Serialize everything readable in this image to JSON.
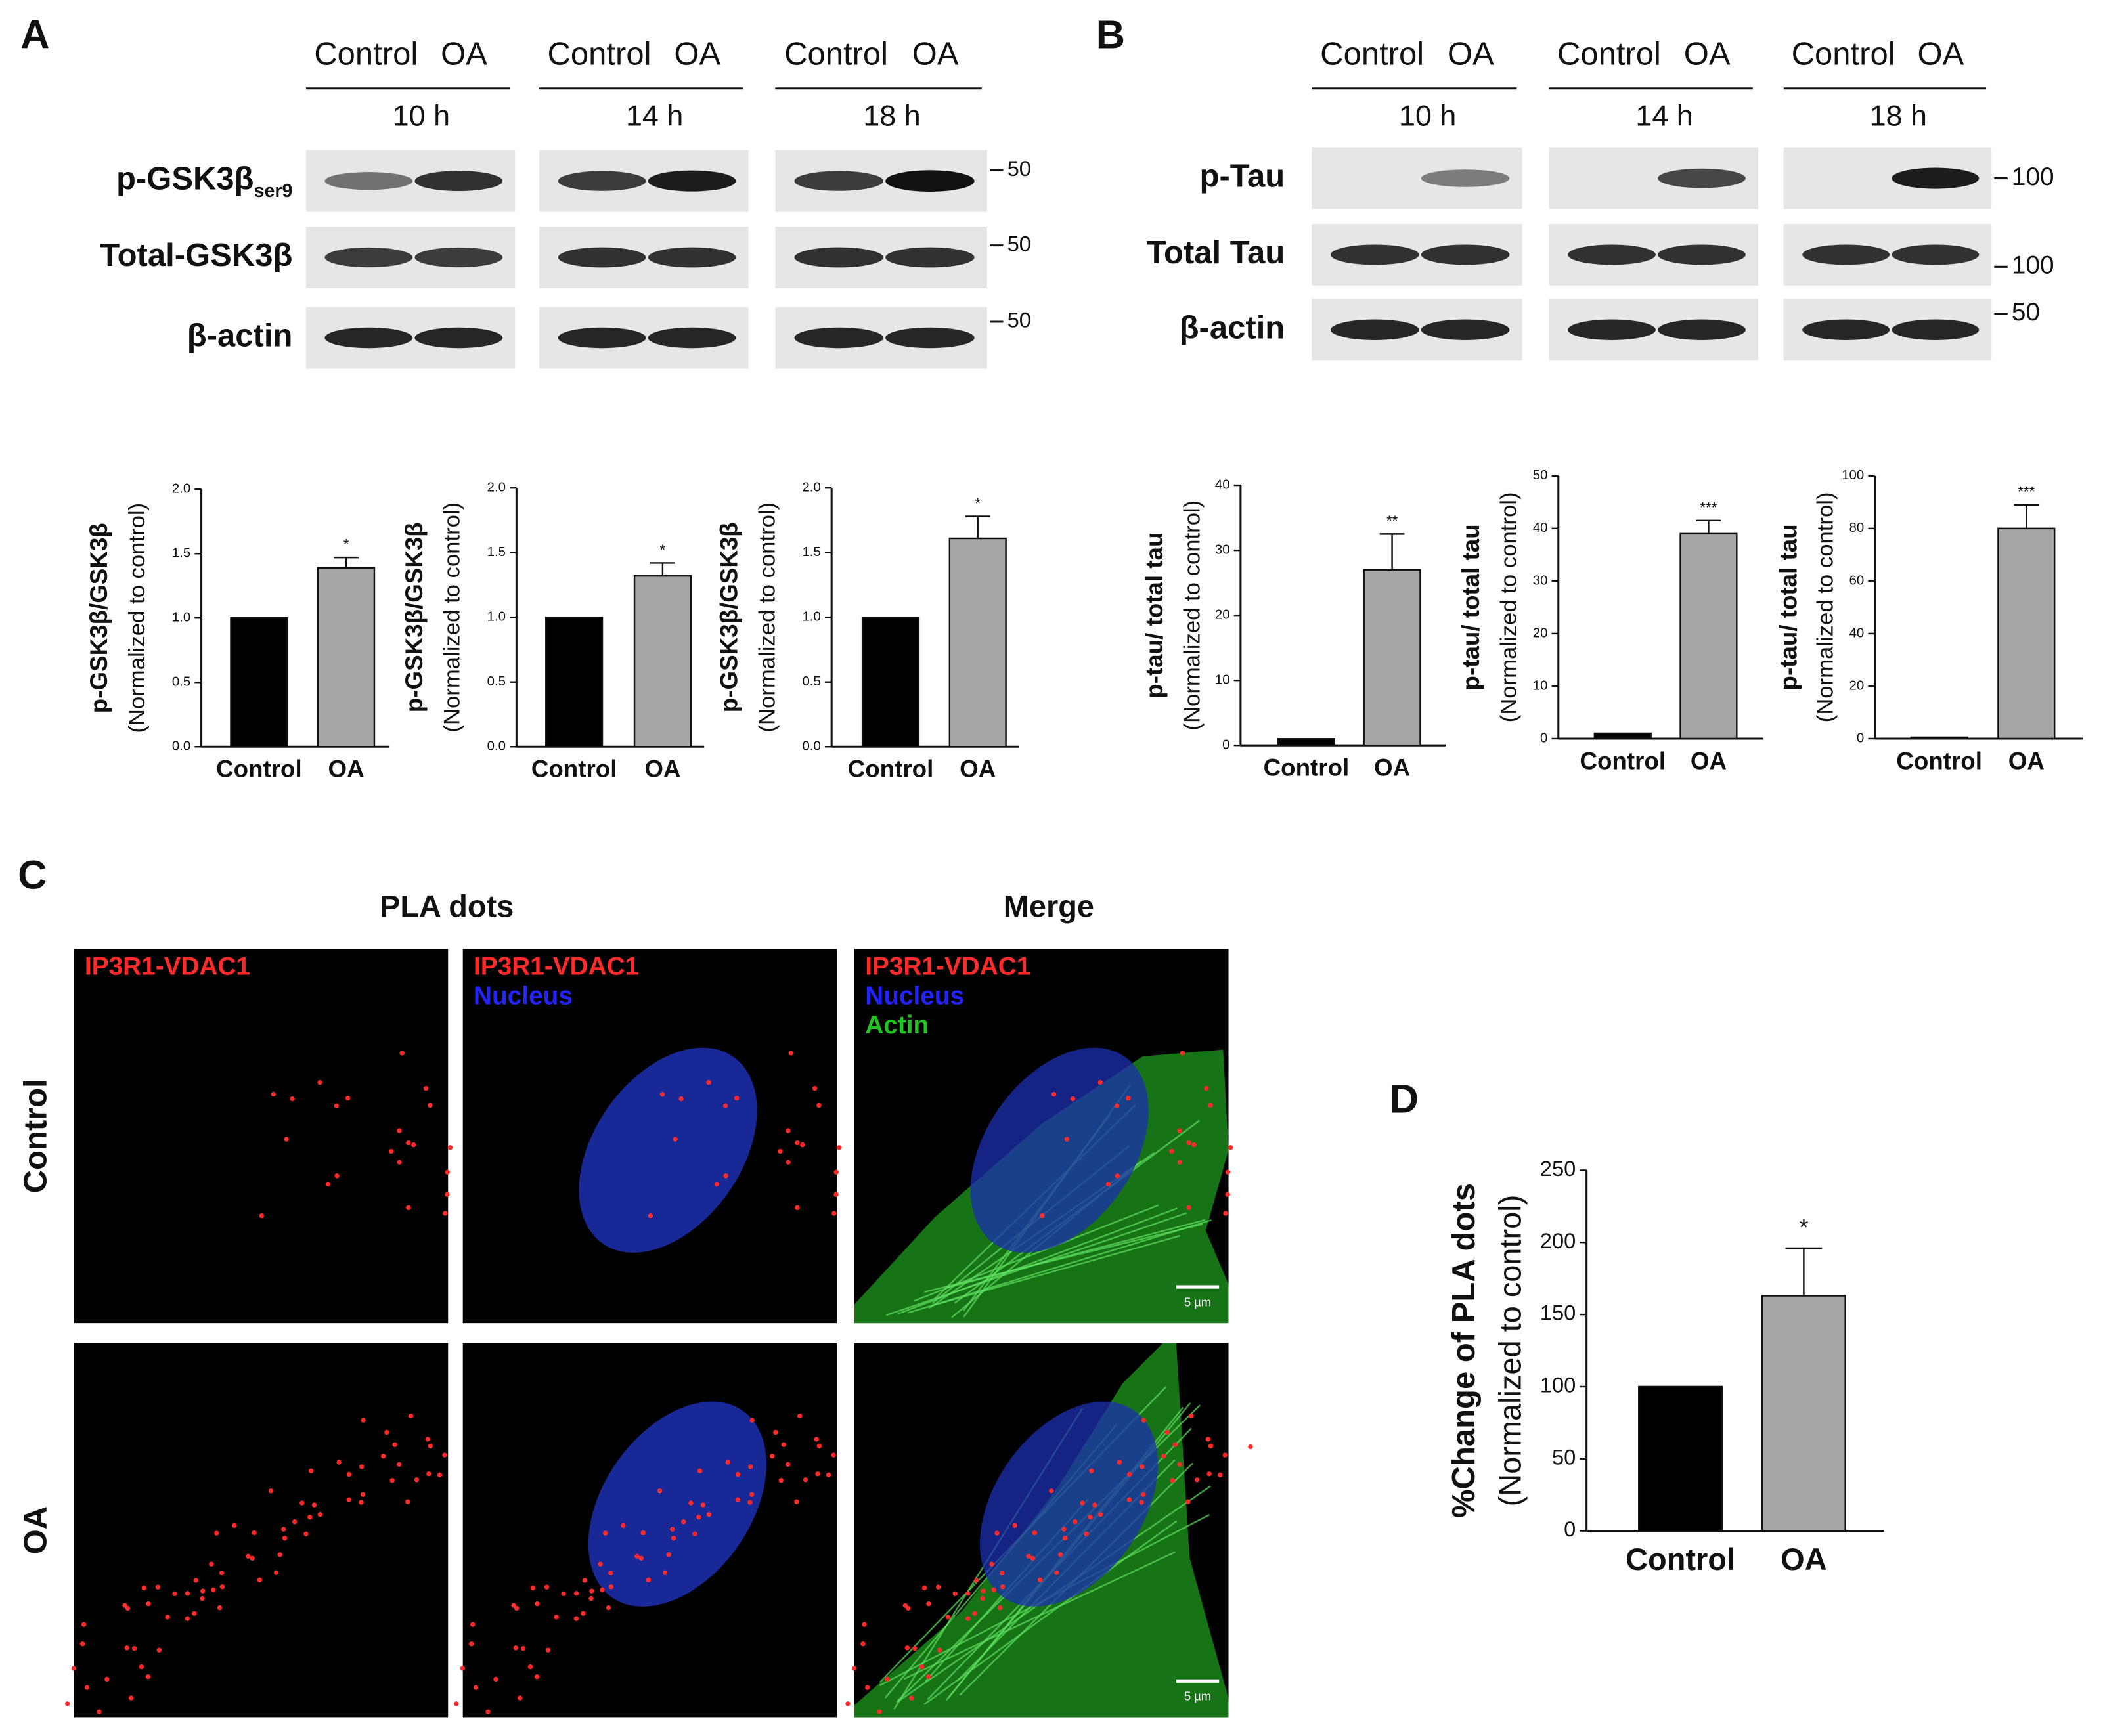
{
  "panel_labels": [
    "A",
    "B",
    "C",
    "D"
  ],
  "blots": [
    {
      "groups": [
        {
          "lanes": [
            "Control",
            "OA"
          ],
          "time": "10 h"
        },
        {
          "lanes": [
            "Control",
            "OA"
          ],
          "time": "14 h"
        },
        {
          "lanes": [
            "Control",
            "OA"
          ],
          "time": "18 h"
        }
      ],
      "rows": [
        {
          "label": "p-GSK3β",
          "sub": "ser9",
          "marker": "50"
        },
        {
          "label": "Total-GSK3β",
          "marker": "50"
        },
        {
          "label": "β-actin",
          "marker": "50"
        }
      ]
    },
    {
      "groups": [
        {
          "lanes": [
            "Control",
            "OA"
          ],
          "time": "10 h"
        },
        {
          "lanes": [
            "Control",
            "OA"
          ],
          "time": "14 h"
        },
        {
          "lanes": [
            "Control",
            "OA"
          ],
          "time": "18 h"
        }
      ],
      "rows": [
        {
          "label": "p-Tau",
          "marker": "100"
        },
        {
          "label": "Total Tau",
          "marker": "100"
        },
        {
          "label": "β-actin",
          "marker": "50"
        }
      ]
    }
  ],
  "imaging": {
    "columns": [
      "PLA dots",
      "Merge"
    ],
    "rows": [
      "Control",
      "OA"
    ],
    "channels": [
      "IP3R1-VDAC1",
      "Nucleus",
      "Actin"
    ],
    "scale_bar": "5 µm"
  },
  "chart_data": [
    {
      "type": "bar",
      "ylabel": "p-GSK3β/GSK3β",
      "ylabel_sub": "(Normalized to control)",
      "categories": [
        "Control",
        "OA"
      ],
      "values": [
        1.0,
        1.39
      ],
      "errors": [
        null,
        0.08
      ],
      "colors": [
        "#000000",
        "#a6a6a6"
      ],
      "annotation": "*",
      "ylim": [
        0,
        2
      ],
      "yticks": [
        {
          "value": 0,
          "label": "0.0"
        },
        {
          "value": 0.5,
          "label": "0.5"
        },
        {
          "value": 1,
          "label": "1.0"
        },
        {
          "value": 1.5,
          "label": "1.5"
        },
        {
          "value": 2,
          "label": "2.0"
        }
      ]
    },
    {
      "type": "bar",
      "ylabel": "p-GSK3β/GSK3β",
      "ylabel_sub": "(Normalized to control)",
      "categories": [
        "Control",
        "OA"
      ],
      "values": [
        1.0,
        1.32
      ],
      "errors": [
        null,
        0.1
      ],
      "colors": [
        "#000000",
        "#a6a6a6"
      ],
      "annotation": "*",
      "ylim": [
        0,
        2
      ],
      "yticks": [
        {
          "value": 0,
          "label": "0.0"
        },
        {
          "value": 0.5,
          "label": "0.5"
        },
        {
          "value": 1,
          "label": "1.0"
        },
        {
          "value": 1.5,
          "label": "1.5"
        },
        {
          "value": 2,
          "label": "2.0"
        }
      ]
    },
    {
      "type": "bar",
      "ylabel": "p-GSK3β/GSK3β",
      "ylabel_sub": "(Normalized to control)",
      "categories": [
        "Control",
        "OA"
      ],
      "values": [
        1.0,
        1.61
      ],
      "errors": [
        null,
        0.17
      ],
      "colors": [
        "#000000",
        "#a6a6a6"
      ],
      "annotation": "*",
      "ylim": [
        0,
        2
      ],
      "yticks": [
        {
          "value": 0,
          "label": "0.0"
        },
        {
          "value": 0.5,
          "label": "0.5"
        },
        {
          "value": 1,
          "label": "1.0"
        },
        {
          "value": 1.5,
          "label": "1.5"
        },
        {
          "value": 2,
          "label": "2.0"
        }
      ]
    },
    {
      "type": "bar",
      "ylabel": "p-tau/ total tau",
      "ylabel_sub": "(Normalized to control)",
      "categories": [
        "Control",
        "OA"
      ],
      "values": [
        1,
        27
      ],
      "errors": [
        null,
        5.5
      ],
      "colors": [
        "#000000",
        "#a6a6a6"
      ],
      "annotation": "**",
      "ylim": [
        0,
        40
      ],
      "yticks": [
        0,
        10,
        20,
        30,
        40
      ]
    },
    {
      "type": "bar",
      "ylabel": "p-tau/ total tau",
      "ylabel_sub": "(Normalized to control)",
      "categories": [
        "Control",
        "OA"
      ],
      "values": [
        1,
        39
      ],
      "errors": [
        null,
        2.5
      ],
      "colors": [
        "#000000",
        "#a6a6a6"
      ],
      "annotation": "***",
      "ylim": [
        0,
        50
      ],
      "yticks": [
        0,
        10,
        20,
        30,
        40,
        50
      ]
    },
    {
      "type": "bar",
      "ylabel": "p-tau/ total tau",
      "ylabel_sub": "(Normalized to control)",
      "categories": [
        "Control",
        "OA"
      ],
      "values": [
        0.5,
        80
      ],
      "errors": [
        null,
        9
      ],
      "colors": [
        "#000000",
        "#a6a6a6"
      ],
      "annotation": "***",
      "ylim": [
        0,
        100
      ],
      "yticks": [
        0,
        20,
        40,
        60,
        80,
        100
      ]
    },
    {
      "type": "bar",
      "ylabel": "%Change of PLA dots",
      "ylabel_sub": "(Normalized to control)",
      "categories": [
        "Control",
        "OA"
      ],
      "values": [
        100,
        163
      ],
      "errors": [
        null,
        33
      ],
      "colors": [
        "#000000",
        "#a6a6a6"
      ],
      "annotation": "*",
      "ylim": [
        0,
        250
      ],
      "yticks": [
        0,
        50,
        100,
        150,
        200,
        250
      ]
    }
  ]
}
